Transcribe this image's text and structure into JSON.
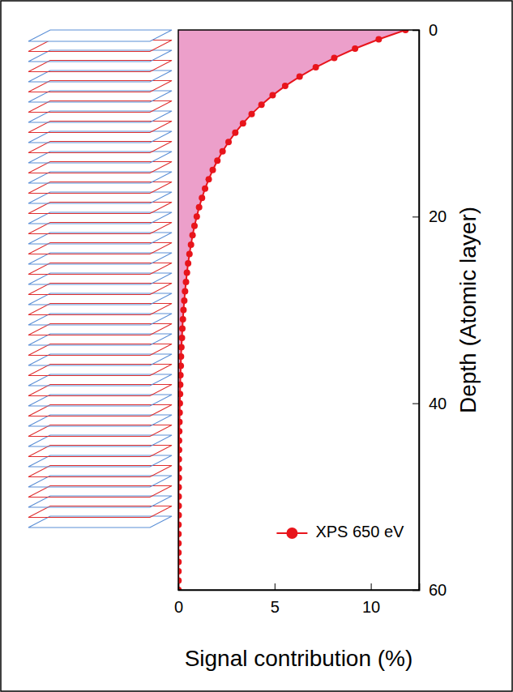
{
  "chart_data": {
    "type": "line",
    "orientation": "horizontal",
    "x_label": "Signal contribution (%)",
    "y_label": "Depth (Atomic layer)",
    "y": [
      0,
      1,
      2,
      3,
      4,
      5,
      6,
      7,
      8,
      9,
      10,
      11,
      12,
      13,
      14,
      15,
      16,
      17,
      18,
      19,
      20,
      21,
      22,
      23,
      24,
      25,
      26,
      27,
      28,
      29,
      30,
      31,
      32,
      33,
      34,
      35,
      36,
      37,
      38,
      39,
      40,
      41,
      42,
      43,
      44,
      45,
      46,
      47,
      48,
      49,
      50,
      51,
      52,
      53,
      54,
      55,
      56,
      57,
      58,
      59,
      60
    ],
    "series": [
      {
        "name": "XPS 650 eV",
        "color": "#e8141b",
        "marker": "circle",
        "line_style": "solid",
        "values": [
          11.8,
          10.41,
          9.18,
          8.1,
          7.14,
          6.3,
          5.55,
          4.9,
          4.32,
          3.81,
          3.36,
          2.96,
          2.61,
          2.3,
          2.03,
          1.79,
          1.58,
          1.39,
          1.23,
          1.08,
          0.96,
          0.84,
          0.74,
          0.66,
          0.58,
          0.51,
          0.45,
          0.4,
          0.35,
          0.31,
          0.27,
          0.24,
          0.21,
          0.19,
          0.16,
          0.14,
          0.13,
          0.11,
          0.1,
          0.09,
          0.08,
          0.07,
          0.06,
          0.05,
          0.04,
          0.04,
          0.03,
          0.03,
          0.03,
          0.02,
          0.02,
          0.02,
          0.02,
          0.01,
          0.01,
          0.01,
          0.01,
          0.01,
          0.01,
          0.01,
          0.01
        ]
      }
    ],
    "xlim": [
      0,
      12.5
    ],
    "xticks": [
      0,
      5,
      10
    ],
    "ylim": [
      0,
      60
    ],
    "yticks": [
      0,
      20,
      40,
      60
    ],
    "legend": "lower right",
    "grid": false
  }
}
